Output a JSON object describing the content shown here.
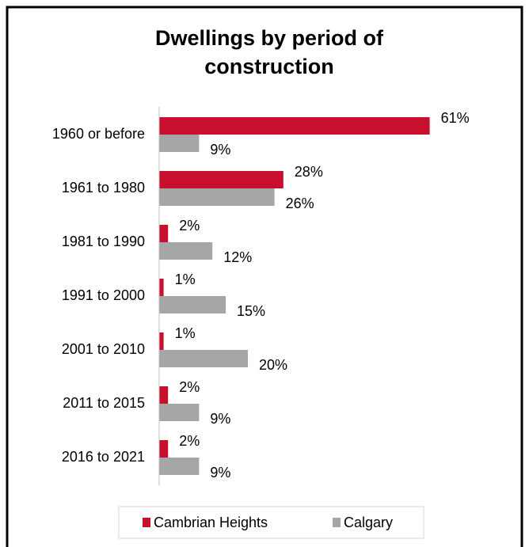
{
  "chart_data": {
    "type": "hbar",
    "title": "Dwellings by period of construction",
    "categories": [
      "1960 or before",
      "1961 to 1980",
      "1981 to 1990",
      "1991 to 2000",
      "2001 to 2010",
      "2011 to 2015",
      "2016 to 2021"
    ],
    "series": [
      {
        "name": "Cambrian Heights",
        "color": "#c8102e",
        "values": [
          61,
          28,
          2,
          1,
          1,
          2,
          2
        ],
        "value_labels": [
          "61%",
          "28%",
          "2%",
          "1%",
          "1%",
          "2%",
          "2%"
        ]
      },
      {
        "name": "Calgary",
        "color": "#a6a6a6",
        "values": [
          9,
          26,
          12,
          15,
          20,
          9,
          9
        ],
        "value_labels": [
          "9%",
          "26%",
          "12%",
          "15%",
          "20%",
          "9%",
          "9%"
        ]
      }
    ],
    "xlim": [
      0,
      70
    ],
    "legend": "bottom"
  }
}
